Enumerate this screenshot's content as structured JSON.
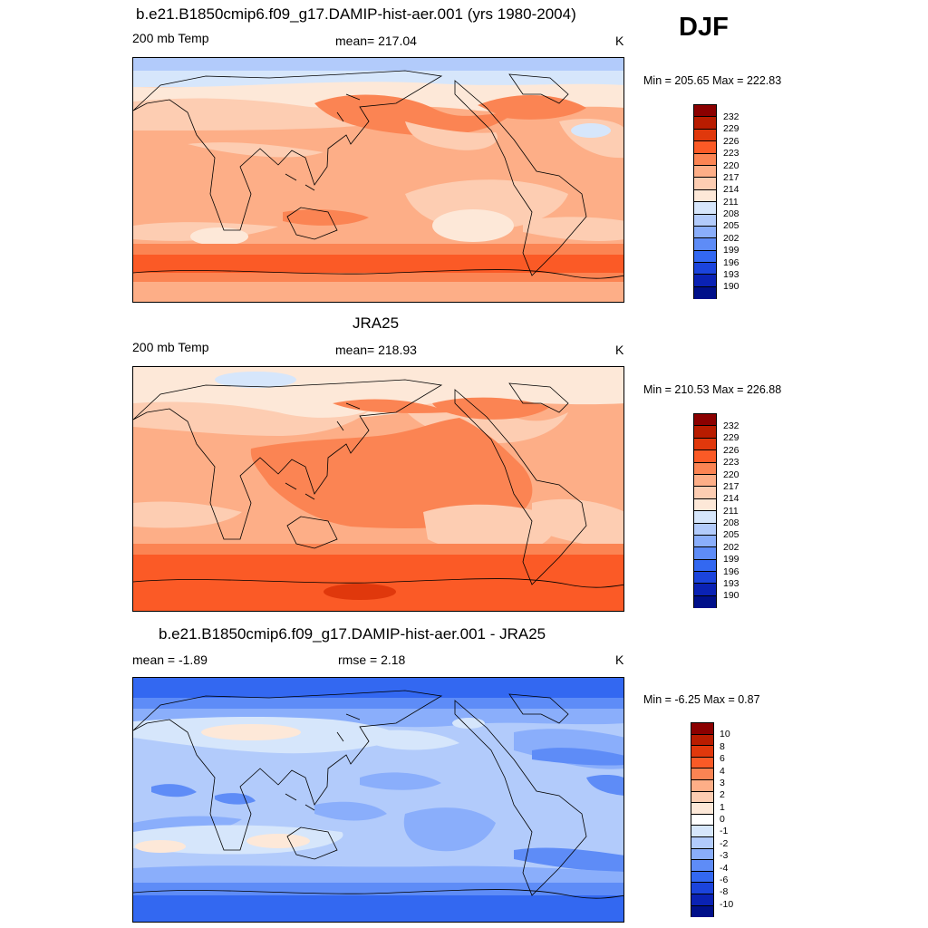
{
  "season": "DJF",
  "panels": [
    {
      "title": "b.e21.B1850cmip6.f09_g17.DAMIP-hist-aer.001 (yrs 1980-2004)",
      "left": "200 mb Temp",
      "center": "mean= 217.04",
      "right": "K",
      "minmax": "Min = 205.65 Max = 222.83",
      "cbar_labels": [
        "232",
        "229",
        "226",
        "223",
        "220",
        "217",
        "214",
        "211",
        "208",
        "205",
        "202",
        "199",
        "196",
        "193",
        "190"
      ]
    },
    {
      "title": "JRA25",
      "left": "200 mb Temp",
      "center": "mean= 218.93",
      "right": "K",
      "minmax": "Min = 210.53 Max = 226.88",
      "cbar_labels": [
        "232",
        "229",
        "226",
        "223",
        "220",
        "217",
        "214",
        "211",
        "208",
        "205",
        "202",
        "199",
        "196",
        "193",
        "190"
      ]
    },
    {
      "title": "b.e21.B1850cmip6.f09_g17.DAMIP-hist-aer.001 - JRA25",
      "left": "mean =  -1.89",
      "center": "rmse =   2.18",
      "right": "K",
      "minmax": "Min =  -6.25 Max =   0.87",
      "cbar_labels": [
        "10",
        "8",
        "6",
        "4",
        "3",
        "2",
        "1",
        "0",
        "-1",
        "-2",
        "-3",
        "-4",
        "-6",
        "-8",
        "-10"
      ]
    }
  ],
  "colors": {
    "abs_scale": [
      "#8b0000",
      "#b81c00",
      "#e0380c",
      "#fb5a26",
      "#fb8453",
      "#fdae87",
      "#fdcdb2",
      "#fde8d8",
      "#d6e6fb",
      "#b2cbfb",
      "#8aaefb",
      "#5e8cf7",
      "#3368f1",
      "#1b44dc",
      "#0a22b4",
      "#00108a"
    ],
    "diff_scale": [
      "#8b0000",
      "#b81c00",
      "#e0380c",
      "#fb5a26",
      "#fb8453",
      "#fdae87",
      "#fdcdb2",
      "#fde8d8",
      "#ffffff",
      "#d6e6fb",
      "#b2cbfb",
      "#8aaefb",
      "#5e8cf7",
      "#3368f1",
      "#1b44dc",
      "#0a22b4",
      "#00108a"
    ]
  }
}
